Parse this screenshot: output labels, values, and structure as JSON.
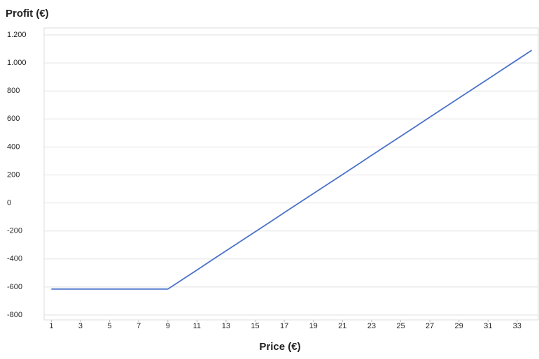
{
  "chart_data": {
    "type": "line",
    "y_label": "Profit (€)",
    "x_label": "Price (€)",
    "x": [
      1,
      2,
      3,
      4,
      5,
      6,
      7,
      8,
      9,
      10,
      11,
      12,
      13,
      14,
      15,
      16,
      17,
      18,
      19,
      20,
      21,
      22,
      23,
      24,
      25,
      26,
      27,
      28,
      29,
      30,
      31,
      32,
      33,
      34
    ],
    "values": [
      -615,
      -615,
      -615,
      -615,
      -615,
      -615,
      -615,
      -615,
      -615,
      -547,
      -479,
      -410,
      -342,
      -274,
      -206,
      -138,
      -69,
      -1,
      67,
      135,
      203,
      271,
      340,
      408,
      476,
      544,
      613,
      681,
      749,
      817,
      885,
      954,
      1022,
      1090
    ],
    "color": "#4a72c8",
    "xlim": [
      0.5,
      34.5
    ],
    "xticks": [
      1,
      3,
      5,
      7,
      9,
      11,
      13,
      15,
      17,
      19,
      21,
      23,
      25,
      27,
      29,
      31,
      33
    ],
    "ylim": [
      -800,
      1200
    ],
    "yticks": [
      -800,
      -600,
      -400,
      -200,
      0,
      200,
      400,
      600,
      800,
      {
        "value": 1000,
        "label": "1.000"
      },
      {
        "value": 1200,
        "label": "1.200"
      }
    ],
    "grid": true
  }
}
